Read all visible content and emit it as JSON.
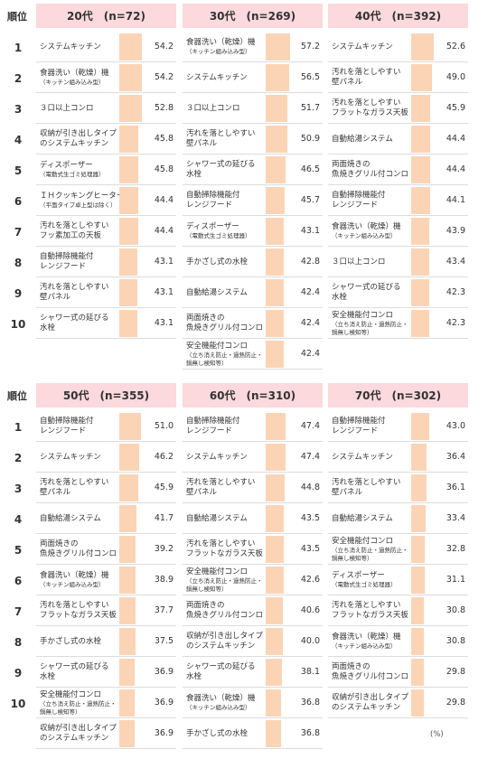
{
  "rank_header": "順位",
  "unit_note": "(%)",
  "chart_data": [
    {
      "type": "bar",
      "group": "20代　(n=72)",
      "items": [
        {
          "rank": "1",
          "label": [
            "システムキッチン"
          ],
          "value": 54.2
        },
        {
          "rank": "2",
          "label": [
            "食器洗い（乾燥）機",
            "（キッチン組み込み型）"
          ],
          "value": 54.2
        },
        {
          "rank": "3",
          "label": [
            "３口以上コンロ"
          ],
          "value": 52.8
        },
        {
          "rank": "4",
          "label": [
            "収納が引き出しタイプ",
            "のシステムキッチン"
          ],
          "value": 45.8
        },
        {
          "rank": "5",
          "label": [
            "ディスポーザー",
            "（電動式生ゴミ処理器）"
          ],
          "value": 45.8
        },
        {
          "rank": "6",
          "label": [
            "ＩＨクッキングヒーター",
            "（平面タイプ卓上型は除く）"
          ],
          "value": 44.4
        },
        {
          "rank": "7",
          "label": [
            "汚れを落としやすい",
            "フッ素加工の天板"
          ],
          "value": 44.4
        },
        {
          "rank": "8",
          "label": [
            "自動掃除機能付",
            "レンジフード"
          ],
          "value": 43.1
        },
        {
          "rank": "9",
          "label": [
            "汚れを落としやすい",
            "壁パネル"
          ],
          "value": 43.1
        },
        {
          "rank": "10",
          "label": [
            "シャワー式の延びる",
            "水栓"
          ],
          "value": 43.1
        }
      ]
    },
    {
      "type": "bar",
      "group": "30代　(n=269)",
      "items": [
        {
          "rank": "1",
          "label": [
            "食器洗い（乾燥）機",
            "（キッチン組み込み型）"
          ],
          "value": 57.2
        },
        {
          "rank": "2",
          "label": [
            "システムキッチン"
          ],
          "value": 56.5
        },
        {
          "rank": "3",
          "label": [
            "３口以上コンロ"
          ],
          "value": 51.7
        },
        {
          "rank": "4",
          "label": [
            "汚れを落としやすい",
            "壁パネル"
          ],
          "value": 50.9
        },
        {
          "rank": "5",
          "label": [
            "シャワー式の延びる",
            "水栓"
          ],
          "value": 46.5
        },
        {
          "rank": "6",
          "label": [
            "自動掃除機能付",
            "レンジフード"
          ],
          "value": 45.7
        },
        {
          "rank": "7",
          "label": [
            "ディスポーザー",
            "（電動式生ゴミ処理器）"
          ],
          "value": 43.1
        },
        {
          "rank": "8",
          "label": [
            "手かざし式の水栓"
          ],
          "value": 42.8
        },
        {
          "rank": "9",
          "label": [
            "自動給湯システム"
          ],
          "value": 42.4
        },
        {
          "rank": "10",
          "label": [
            "両面焼きの",
            "魚焼きグリル付コンロ"
          ],
          "value": 42.4
        },
        {
          "rank": "",
          "label": [
            "安全機能付コンロ",
            "（立ち消え防止・過熱防止・",
            "鍋無し検知等）"
          ],
          "value": 42.4
        }
      ]
    },
    {
      "type": "bar",
      "group": "40代　(n=392)",
      "items": [
        {
          "rank": "1",
          "label": [
            "システムキッチン"
          ],
          "value": 52.6
        },
        {
          "rank": "2",
          "label": [
            "汚れを落としやすい",
            "壁パネル"
          ],
          "value": 49.0
        },
        {
          "rank": "3",
          "label": [
            "汚れを落としやすい",
            "フラットなガラス天板"
          ],
          "value": 45.9
        },
        {
          "rank": "4",
          "label": [
            "自動給湯システム"
          ],
          "value": 44.4
        },
        {
          "rank": "5",
          "label": [
            "両面焼きの",
            "魚焼きグリル付コンロ"
          ],
          "value": 44.4
        },
        {
          "rank": "6",
          "label": [
            "自動掃除機能付",
            "レンジフード"
          ],
          "value": 44.1
        },
        {
          "rank": "7",
          "label": [
            "食器洗い（乾燥）機",
            "（キッチン組み込み型）"
          ],
          "value": 43.9
        },
        {
          "rank": "8",
          "label": [
            "３口以上コンロ"
          ],
          "value": 43.4
        },
        {
          "rank": "9",
          "label": [
            "シャワー式の延びる",
            "水栓"
          ],
          "value": 42.3
        },
        {
          "rank": "10",
          "label": [
            "安全機能付コンロ",
            "（立ち消え防止・過熱防止・",
            "鍋無し検知等）"
          ],
          "value": 42.3
        }
      ]
    },
    {
      "type": "bar",
      "group": "50代　(n=355)",
      "items": [
        {
          "rank": "1",
          "label": [
            "自動掃除機能付",
            "レンジフード"
          ],
          "value": 51.0
        },
        {
          "rank": "2",
          "label": [
            "システムキッチン"
          ],
          "value": 46.2
        },
        {
          "rank": "3",
          "label": [
            "汚れを落としやすい",
            "壁パネル"
          ],
          "value": 45.9
        },
        {
          "rank": "4",
          "label": [
            "自動給湯システム"
          ],
          "value": 41.7
        },
        {
          "rank": "5",
          "label": [
            "両面焼きの",
            "魚焼きグリル付コンロ"
          ],
          "value": 39.2
        },
        {
          "rank": "6",
          "label": [
            "食器洗い（乾燥）機",
            "（キッチン組み込み型）"
          ],
          "value": 38.9
        },
        {
          "rank": "7",
          "label": [
            "汚れを落としやすい",
            "フラットなガラス天板"
          ],
          "value": 37.7
        },
        {
          "rank": "8",
          "label": [
            "手かざし式の水栓"
          ],
          "value": 37.5
        },
        {
          "rank": "9",
          "label": [
            "シャワー式の延びる",
            "水栓"
          ],
          "value": 36.9
        },
        {
          "rank": "10",
          "label": [
            "安全機能付コンロ",
            "（立ち消え防止・過熱防止・",
            "鍋無し検知等）"
          ],
          "value": 36.9
        },
        {
          "rank": "",
          "label": [
            "収納が引き出しタイプ",
            "のシステムキッチン"
          ],
          "value": 36.9
        }
      ]
    },
    {
      "type": "bar",
      "group": "60代　(n=310)",
      "items": [
        {
          "rank": "1",
          "label": [
            "自動掃除機能付",
            "レンジフード"
          ],
          "value": 47.4
        },
        {
          "rank": "2",
          "label": [
            "システムキッチン"
          ],
          "value": 47.4
        },
        {
          "rank": "3",
          "label": [
            "汚れを落としやすい",
            "壁パネル"
          ],
          "value": 44.8
        },
        {
          "rank": "4",
          "label": [
            "自動給湯システム"
          ],
          "value": 43.5
        },
        {
          "rank": "5",
          "label": [
            "汚れを落としやすい",
            "フラットなガラス天板"
          ],
          "value": 43.5
        },
        {
          "rank": "6",
          "label": [
            "安全機能付コンロ",
            "（立ち消え防止・過熱防止・",
            "鍋無し検知等）"
          ],
          "value": 42.6
        },
        {
          "rank": "7",
          "label": [
            "両面焼きの",
            "魚焼きグリル付コンロ"
          ],
          "value": 40.6
        },
        {
          "rank": "8",
          "label": [
            "収納が引き出しタイプ",
            "のシステムキッチン"
          ],
          "value": 40.0
        },
        {
          "rank": "9",
          "label": [
            "シャワー式の延びる",
            "水栓"
          ],
          "value": 38.1
        },
        {
          "rank": "10",
          "label": [
            "食器洗い（乾燥）機",
            "（キッチン組み込み型）"
          ],
          "value": 36.8
        },
        {
          "rank": "",
          "label": [
            "手かざし式の水栓"
          ],
          "value": 36.8
        }
      ]
    },
    {
      "type": "bar",
      "group": "70代　(n=302)",
      "items": [
        {
          "rank": "1",
          "label": [
            "自動掃除機能付",
            "レンジフード"
          ],
          "value": 43.0
        },
        {
          "rank": "2",
          "label": [
            "システムキッチン"
          ],
          "value": 36.4
        },
        {
          "rank": "3",
          "label": [
            "汚れを落としやすい",
            "壁パネル"
          ],
          "value": 36.1
        },
        {
          "rank": "4",
          "label": [
            "自動給湯システム"
          ],
          "value": 33.4
        },
        {
          "rank": "5",
          "label": [
            "安全機能付コンロ",
            "（立ち消え防止・過熱防止・",
            "鍋無し検知等）"
          ],
          "value": 32.8
        },
        {
          "rank": "6",
          "label": [
            "ディスポーザー",
            "（電動式生ゴミ処理器）"
          ],
          "value": 31.1
        },
        {
          "rank": "7",
          "label": [
            "汚れを落としやすい",
            "フラットなガラス天板"
          ],
          "value": 30.8
        },
        {
          "rank": "8",
          "label": [
            "食器洗い（乾燥）機",
            "（キッチン組み込み型）"
          ],
          "value": 30.8
        },
        {
          "rank": "9",
          "label": [
            "両面焼きの",
            "魚焼きグリル付コンロ"
          ],
          "value": 29.8
        },
        {
          "rank": "10",
          "label": [
            "収納が引き出しタイプ",
            "のシステムキッチン"
          ],
          "value": 29.8
        }
      ]
    }
  ]
}
